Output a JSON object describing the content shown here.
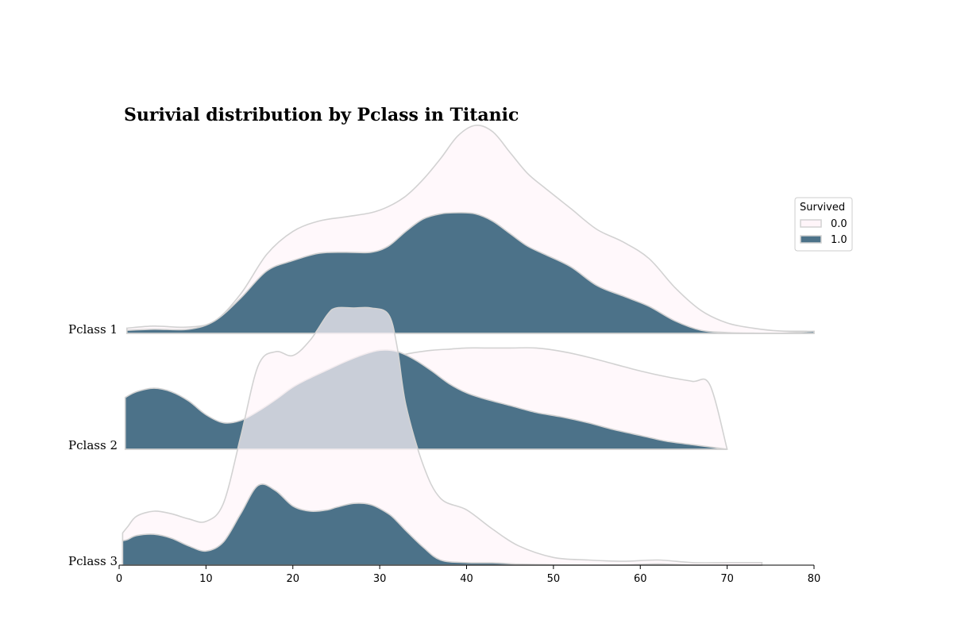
{
  "chart_data": {
    "type": "area",
    "subtype": "ridgeline-kde",
    "title": "Surivial distribution by Pclass in Titanic",
    "xlabel": "",
    "ylabel": "",
    "xlim": [
      0,
      80
    ],
    "xticks": [
      0,
      10,
      20,
      30,
      40,
      50,
      60,
      70,
      80
    ],
    "grid": false,
    "legend": {
      "title": "Survived",
      "placement": "right",
      "entries": [
        {
          "label": "0.0",
          "fill": "#fff5f9",
          "edge": "#d2d2d2"
        },
        {
          "label": "1.0",
          "fill": "#4c7289",
          "edge": "#d2d2d2"
        }
      ]
    },
    "rows": [
      {
        "label": "Pclass 1",
        "series": [
          {
            "name": "0.0",
            "x": [
              0.9,
              4,
              8,
              11,
              14,
              17,
              20,
              23,
              26,
              29,
              31,
              33,
              35,
              37,
              39,
              41,
              43,
              45,
              47,
              49,
              52,
              55,
              58,
              61,
              64,
              67,
              70,
              73,
              76,
              80
            ],
            "density": [
              0.025,
              0.035,
              0.03,
              0.06,
              0.19,
              0.38,
              0.49,
              0.54,
              0.56,
              0.58,
              0.61,
              0.66,
              0.74,
              0.84,
              0.95,
              1.0,
              0.97,
              0.87,
              0.77,
              0.7,
              0.6,
              0.5,
              0.44,
              0.36,
              0.22,
              0.11,
              0.05,
              0.025,
              0.012,
              0.01
            ]
          },
          {
            "name": "1.0",
            "x": [
              0.9,
              4,
              8,
              11,
              14,
              17,
              20,
              23,
              26,
              29,
              31,
              33,
              35,
              37,
              39,
              41,
              43,
              45,
              47,
              49,
              52,
              55,
              58,
              61,
              64,
              67,
              70,
              73,
              76,
              80
            ],
            "density": [
              0.015,
              0.02,
              0.02,
              0.06,
              0.17,
              0.3,
              0.35,
              0.385,
              0.39,
              0.39,
              0.42,
              0.49,
              0.55,
              0.575,
              0.58,
              0.575,
              0.54,
              0.48,
              0.42,
              0.38,
              0.32,
              0.23,
              0.18,
              0.13,
              0.06,
              0.015,
              0.004,
              0.001,
              0.0,
              0.01
            ]
          }
        ]
      },
      {
        "label": "Pclass 2",
        "series": [
          {
            "name": "0.0",
            "x": [
              0.7,
              2,
              4,
              6,
              8,
              10,
              12,
              14,
              16,
              18,
              20,
              22,
              24,
              26,
              28,
              30,
              32,
              34,
              36,
              38,
              40,
              42,
              45,
              48,
              51,
              54,
              57,
              60,
              63,
              66,
              68,
              70
            ],
            "density": [
              0.001,
              0.002,
              0.003,
              0.005,
              0.01,
              0.02,
              0.06,
              0.16,
              0.28,
              0.37,
              0.45,
              0.53,
              0.61,
              0.67,
              0.72,
              0.77,
              0.81,
              0.84,
              0.86,
              0.87,
              0.88,
              0.88,
              0.88,
              0.88,
              0.85,
              0.8,
              0.74,
              0.68,
              0.63,
              0.59,
              0.56,
              0.0
            ]
          },
          {
            "name": "1.0",
            "x": [
              0.7,
              2,
              4,
              6,
              8,
              10,
              12,
              14,
              16,
              18,
              20,
              22,
              24,
              26,
              28,
              30,
              32,
              34,
              36,
              38,
              40,
              42,
              45,
              48,
              51,
              54,
              57,
              60,
              63,
              66,
              68,
              70
            ],
            "density": [
              0.45,
              0.5,
              0.53,
              0.5,
              0.42,
              0.3,
              0.23,
              0.25,
              0.33,
              0.43,
              0.54,
              0.62,
              0.69,
              0.76,
              0.82,
              0.86,
              0.85,
              0.78,
              0.68,
              0.57,
              0.49,
              0.44,
              0.38,
              0.32,
              0.28,
              0.23,
              0.17,
              0.12,
              0.07,
              0.04,
              0.02,
              0.0
            ]
          }
        ]
      },
      {
        "label": "Pclass 3",
        "series": [
          {
            "name": "0.0",
            "x": [
              0.4,
              1,
              2,
              4,
              6,
              8,
              10,
              12,
              14,
              16,
              18,
              20,
              22,
              24,
              25,
              27,
              29,
              31,
              32,
              33,
              35,
              37,
              40,
              43,
              46,
              50,
              54,
              58,
              62,
              66,
              70,
              74
            ],
            "density": [
              0.25,
              0.3,
              0.38,
              0.42,
              0.4,
              0.36,
              0.34,
              0.48,
              1.0,
              1.55,
              1.66,
              1.63,
              1.75,
              1.95,
              2.0,
              2.0,
              2.0,
              1.95,
              1.7,
              1.25,
              0.78,
              0.52,
              0.43,
              0.28,
              0.15,
              0.06,
              0.04,
              0.03,
              0.04,
              0.02,
              0.02,
              0.02
            ]
          },
          {
            "name": "1.0",
            "x": [
              0.4,
              1,
              2,
              4,
              6,
              8,
              10,
              12,
              14,
              16,
              18,
              20,
              22,
              24,
              25,
              27,
              29,
              31,
              32,
              33,
              35,
              37,
              40,
              43,
              46,
              50,
              54,
              58,
              62,
              66,
              70,
              74
            ],
            "density": [
              0.19,
              0.2,
              0.23,
              0.24,
              0.21,
              0.15,
              0.11,
              0.18,
              0.4,
              0.62,
              0.58,
              0.46,
              0.42,
              0.43,
              0.45,
              0.48,
              0.47,
              0.4,
              0.34,
              0.27,
              0.14,
              0.04,
              0.02,
              0.018,
              0.008,
              0.003,
              0.0,
              0.0,
              0.01,
              0.0,
              0.0,
              0.0
            ]
          }
        ]
      }
    ]
  }
}
